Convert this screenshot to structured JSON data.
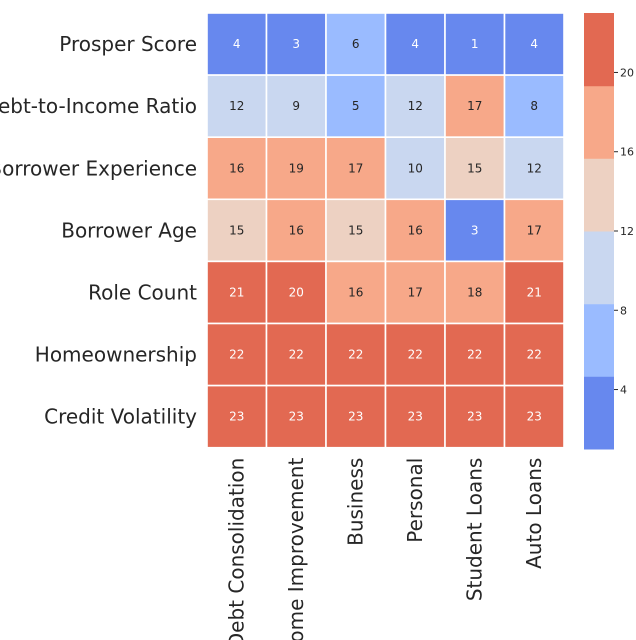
{
  "chart_data": {
    "type": "heatmap",
    "title": "",
    "xlabel": "",
    "ylabel": "",
    "rows": [
      "Prosper Score",
      "Debt-to-Income Ratio",
      "Borrower Experience",
      "Borrower Age",
      "Role Count",
      "Homeownership",
      "Credit Volatility"
    ],
    "columns": [
      "Debt Consolidation",
      "Home Improvement",
      "Business",
      "Personal",
      "Student Loans",
      "Auto Loans"
    ],
    "values": [
      [
        4,
        3,
        6,
        4,
        1,
        4
      ],
      [
        12,
        9,
        5,
        12,
        17,
        8
      ],
      [
        16,
        19,
        17,
        10,
        15,
        12
      ],
      [
        15,
        16,
        15,
        16,
        3,
        17
      ],
      [
        21,
        20,
        16,
        17,
        18,
        21
      ],
      [
        22,
        22,
        22,
        22,
        22,
        22
      ],
      [
        23,
        23,
        23,
        23,
        23,
        23
      ]
    ],
    "value_range": [
      1,
      23
    ],
    "colorbar": {
      "ticks": [
        "4",
        "8",
        "12",
        "16",
        "20"
      ],
      "tick_values": [
        4,
        8,
        12,
        16,
        20
      ]
    },
    "palette": {
      "bins": [
        {
          "max": 4.67,
          "color": "#6788ee"
        },
        {
          "max": 8.33,
          "color": "#9abbff"
        },
        {
          "max": 12.0,
          "color": "#c9d7f0"
        },
        {
          "max": 15.67,
          "color": "#edd1c2"
        },
        {
          "max": 19.33,
          "color": "#f7a889"
        },
        {
          "max": 23.0,
          "color": "#e26952"
        }
      ],
      "grid_line": "#ffffff",
      "label_dark": "#262626",
      "label_light": "#ffffff"
    }
  }
}
